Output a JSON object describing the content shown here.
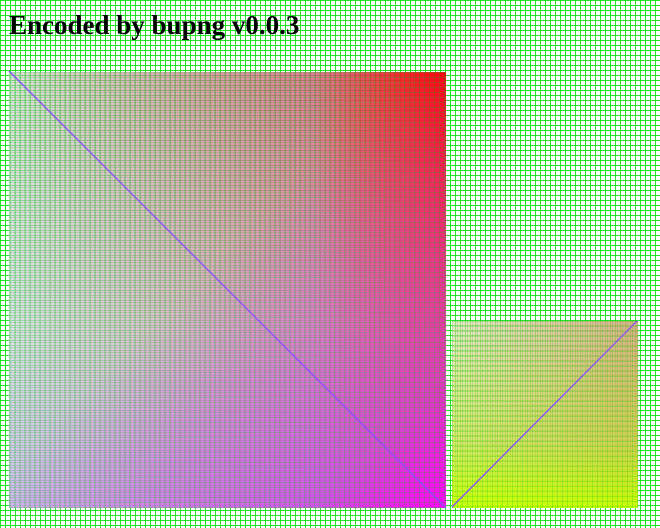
{
  "title": "Encoded by bupng v0.0.3",
  "colors": {
    "background": "#ffffff",
    "grid": "#00dd00",
    "large_panel_top_right": "#ff0000",
    "large_panel_bottom_right": "#ff00ff",
    "small_panel_bottom": "#ccff00",
    "diagonal_line": "#8a4dff"
  }
}
